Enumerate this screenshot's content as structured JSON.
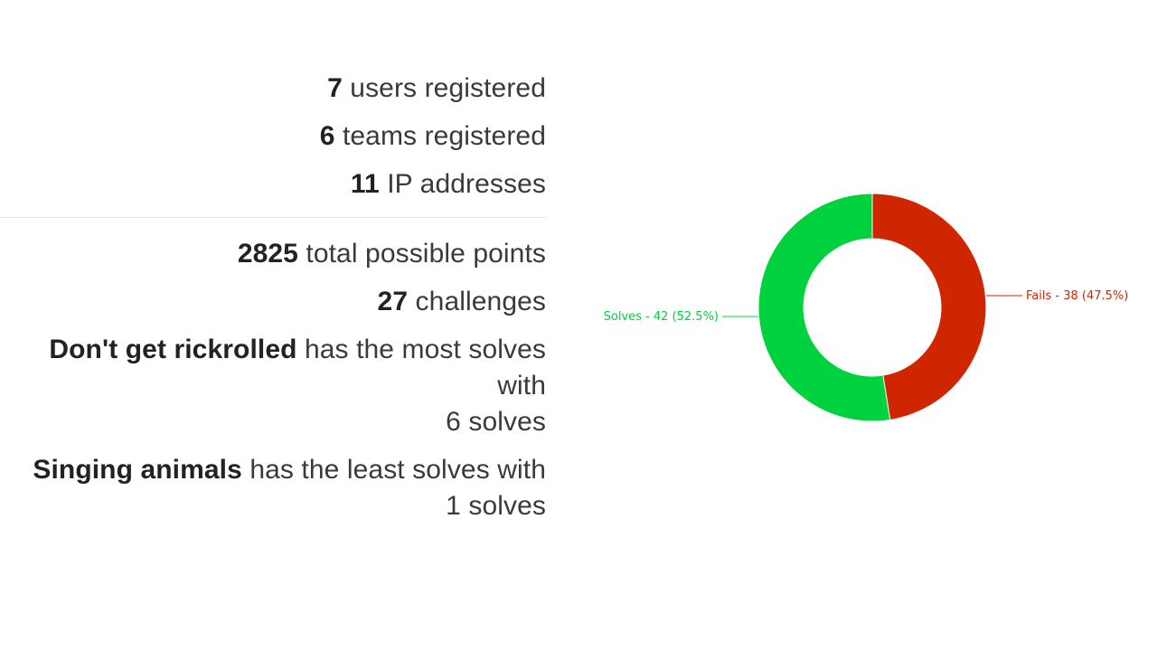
{
  "stats": {
    "users": {
      "value": "7",
      "label": " users registered"
    },
    "teams": {
      "value": "6",
      "label": " teams registered"
    },
    "ips": {
      "value": "11",
      "label": " IP addresses"
    },
    "points": {
      "value": "2825",
      "label": " total possible points"
    },
    "challenges": {
      "value": "27",
      "label": " challenges"
    },
    "most_solved": {
      "name": "Don't get rickrolled",
      "label_line1": " has the most solves",
      "label_line2": "with",
      "label_line3": "6 solves"
    },
    "least_solved": {
      "name": "Singing animals",
      "label_line1": " has the least solves with",
      "label_line2": "1 solves"
    }
  },
  "chart_data": {
    "type": "pie",
    "donut": true,
    "series": [
      {
        "name": "Fails",
        "value": 38,
        "percent": 47.5,
        "label": "Fails - 38 (47.5%)",
        "color": "#cf2600"
      },
      {
        "name": "Solves",
        "value": 42,
        "percent": 52.5,
        "label": "Solves - 42 (52.5%)",
        "color": "#00d13f"
      }
    ]
  }
}
